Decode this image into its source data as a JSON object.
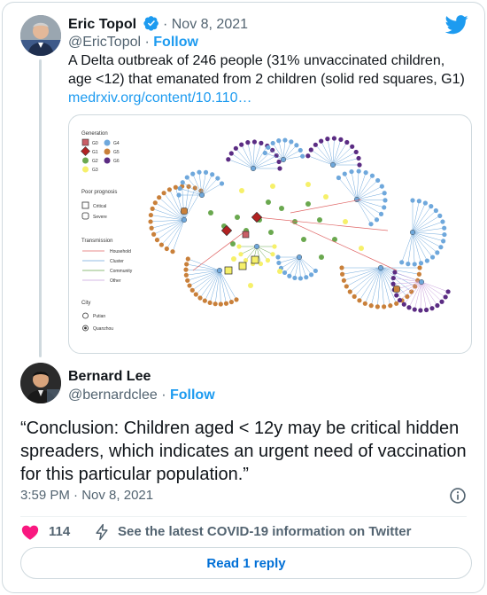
{
  "quoted_tweet": {
    "author_name": "Eric Topol",
    "date": "Nov 8, 2021",
    "separator": "·",
    "handle": "@EricTopol",
    "follow_label": "Follow",
    "text": "A Delta outbreak of 246 people (31% unvaccinated children, age <12) that emanated from 2 children (solid red squares, G1)",
    "link": "medrxiv.org/content/10.110…",
    "avatar_icon": "user-avatar-icon",
    "verified_icon": "verified-badge-icon",
    "figure": {
      "legend_generation_title": "Generation",
      "generations": [
        "G0",
        "G1",
        "G2",
        "G3",
        "G4",
        "G5",
        "G6"
      ],
      "legend_prognosis_title": "Poor prognosis",
      "prognosis": [
        "Critical",
        "Severe"
      ],
      "legend_transmission_title": "Transmission",
      "transmission": [
        "Household",
        "Cluster",
        "Community",
        "Other"
      ],
      "legend_city_title": "City",
      "cities": [
        "Putian",
        "Quanzhou"
      ],
      "colors": {
        "G0": "#c95e66",
        "G1": "#b22222",
        "G2": "#6aa84f",
        "G3": "#f6f06a",
        "G4": "#6fa8dc",
        "G5": "#c9803a",
        "G6": "#5b2c83",
        "household": "#e06666",
        "cluster": "#6fa8dc",
        "community": "#6aa84f",
        "other": "#c9a0dc"
      }
    }
  },
  "tweet": {
    "author_name": "Bernard Lee",
    "handle": "@bernardclee",
    "separator": "·",
    "follow_label": "Follow",
    "text": "“Conclusion: Children aged < 12y may be critical hidden spreaders, which indicates an urgent need of vaccination for this particular population.”",
    "time": "3:59 PM",
    "date": "Nov 8, 2021",
    "avatar_icon": "user-avatar-icon"
  },
  "actions": {
    "like_count": "114",
    "covid_label": "See the latest COVID-19 information on Twitter",
    "reply_label": "Read 1 reply"
  },
  "brand": {
    "twitter_blue": "#1d9bf0",
    "like_red": "#f91880",
    "logo_icon": "twitter-bird-icon"
  }
}
